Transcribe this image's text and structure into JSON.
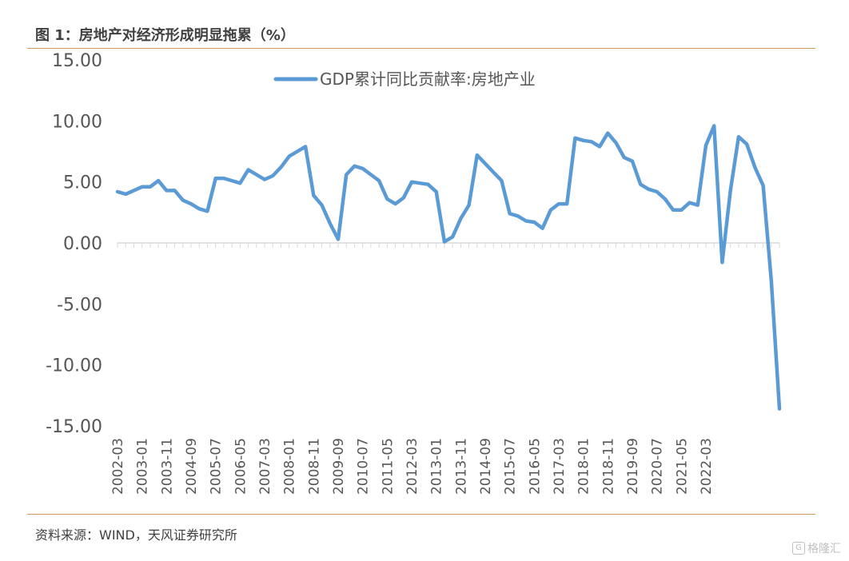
{
  "figure": {
    "title": "图 1：房地产对经济形成明显拖累（%）",
    "source": "资料来源：WIND，天风证券研究所",
    "watermark": "格隆汇",
    "watermark_icon": "G",
    "line_color": "#5b9bd5",
    "rule_color": "#c99a5b"
  },
  "chart_data": {
    "type": "line",
    "title": "",
    "xlabel": "",
    "ylabel": "",
    "ylim": [
      -15,
      15
    ],
    "yticks": [
      "15.00",
      "10.00",
      "5.00",
      "0.00",
      "-5.00",
      "-10.00",
      "-15.00"
    ],
    "ytick_values": [
      15,
      10,
      5,
      0,
      -5,
      -10,
      -15
    ],
    "grid": false,
    "legend": "top-center",
    "x_tick_labels": [
      "2002-03",
      "2003-01",
      "2003-11",
      "2004-09",
      "2005-07",
      "2006-05",
      "2007-03",
      "2008-01",
      "2008-11",
      "2009-09",
      "2010-07",
      "2011-05",
      "2012-03",
      "2013-01",
      "2013-11",
      "2014-09",
      "2015-07",
      "2016-05",
      "2017-03",
      "2018-01",
      "2018-11",
      "2019-09",
      "2020-07",
      "2021-05",
      "2022-03"
    ],
    "x_ticks_every_n_quarters": 3,
    "series": [
      {
        "name": "GDP累计同比贡献率:房地产业",
        "color": "#5b9bd5",
        "values": [
          4.2,
          4.0,
          4.3,
          4.6,
          4.6,
          5.1,
          4.3,
          4.3,
          3.5,
          3.2,
          2.8,
          2.6,
          5.3,
          5.3,
          5.1,
          4.9,
          6.0,
          5.6,
          5.2,
          5.5,
          6.2,
          7.1,
          7.5,
          7.9,
          3.9,
          3.1,
          1.6,
          0.3,
          5.6,
          6.3,
          6.1,
          5.6,
          5.1,
          3.6,
          3.2,
          3.7,
          5.0,
          4.9,
          4.8,
          4.2,
          0.1,
          0.5,
          2.0,
          3.1,
          7.2,
          6.5,
          5.8,
          5.1,
          2.4,
          2.2,
          1.8,
          1.7,
          1.2,
          2.7,
          3.2,
          3.2,
          8.6,
          8.4,
          8.3,
          7.9,
          9.0,
          8.2,
          7.0,
          6.7,
          4.8,
          4.4,
          4.2,
          3.6,
          2.7,
          2.7,
          3.3,
          3.1,
          8.0,
          9.6,
          -1.6,
          4.3,
          8.7,
          8.1,
          6.2,
          4.7,
          -3.1,
          -13.6
        ]
      }
    ]
  }
}
